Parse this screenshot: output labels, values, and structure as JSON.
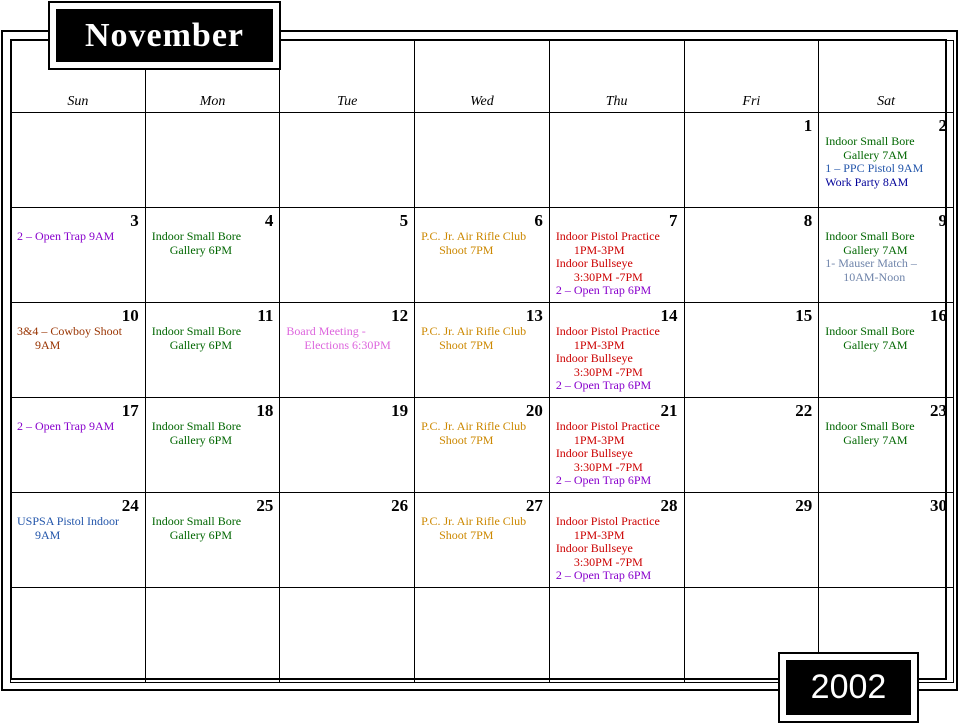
{
  "month": "November",
  "year": "2002",
  "weekdays": [
    "Sun",
    "Mon",
    "Tue",
    "Wed",
    "Thu",
    "Fri",
    "Sat"
  ],
  "colors": {
    "green": "#006600",
    "purple": "#8800cc",
    "orange": "#cc8800",
    "red": "#cc0000",
    "blue": "#000099",
    "steel": "#2255aa",
    "gray": "#6f84aa",
    "brown": "#993300",
    "pink": "#dd66dd"
  },
  "weeks": [
    [
      {
        "day": "",
        "events": []
      },
      {
        "day": "",
        "events": []
      },
      {
        "day": "",
        "events": []
      },
      {
        "day": "",
        "events": []
      },
      {
        "day": "",
        "events": []
      },
      {
        "day": "1",
        "events": []
      },
      {
        "day": "2",
        "events": [
          {
            "line1": "Indoor Small Bore",
            "line2": "Gallery 7AM",
            "color": "#006600"
          },
          {
            "line1": "1 – PPC Pistol  9AM",
            "line2": "",
            "color": "#2255aa"
          },
          {
            "line1": "Work Party  8AM",
            "line2": "",
            "color": "#000099"
          }
        ]
      }
    ],
    [
      {
        "day": "3",
        "events": [
          {
            "line1": "2 – Open Trap  9AM",
            "line2": "",
            "color": "#8800cc"
          }
        ]
      },
      {
        "day": "4",
        "events": [
          {
            "line1": "Indoor Small Bore",
            "line2": "Gallery 6PM",
            "color": "#006600"
          }
        ]
      },
      {
        "day": "5",
        "events": []
      },
      {
        "day": "6",
        "events": [
          {
            "line1": "P.C. Jr. Air Rifle Club",
            "line2": "Shoot   7PM",
            "color": "#cc8800"
          }
        ]
      },
      {
        "day": "7",
        "events": [
          {
            "line1": "Indoor Pistol Practice",
            "line2": "1PM-3PM",
            "color": "#cc0000"
          },
          {
            "line1": "Indoor  Bullseye",
            "line2": "3:30PM -7PM",
            "color": "#cc0000"
          },
          {
            "line1": "2 – Open Trap  6PM",
            "line2": "",
            "color": "#8800cc"
          }
        ]
      },
      {
        "day": "8",
        "events": []
      },
      {
        "day": "9",
        "events": [
          {
            "line1": "Indoor Small Bore",
            "line2": "Gallery 7AM",
            "color": "#006600"
          },
          {
            "line1": "1- Mauser Match –",
            "line2": "10AM-Noon",
            "color": "#6f84aa"
          }
        ]
      }
    ],
    [
      {
        "day": "10",
        "events": [
          {
            "line1": "3&4 – Cowboy Shoot",
            "line2": "9AM",
            "color": "#993300"
          }
        ]
      },
      {
        "day": "11",
        "events": [
          {
            "line1": "Indoor Small Bore",
            "line2": "Gallery 6PM",
            "color": "#006600"
          }
        ]
      },
      {
        "day": "12",
        "events": [
          {
            "line1": "Board Meeting -",
            "line2": "Elections  6:30PM",
            "color": "#dd66dd"
          }
        ]
      },
      {
        "day": "13",
        "events": [
          {
            "line1": "P.C. Jr. Air Rifle Club",
            "line2": "Shoot   7PM",
            "color": "#cc8800"
          }
        ]
      },
      {
        "day": "14",
        "events": [
          {
            "line1": "Indoor Pistol Practice",
            "line2": "1PM-3PM",
            "color": "#cc0000"
          },
          {
            "line1": "Indoor  Bullseye",
            "line2": "3:30PM -7PM",
            "color": "#cc0000"
          },
          {
            "line1": "2 – Open Trap  6PM",
            "line2": "",
            "color": "#8800cc"
          }
        ]
      },
      {
        "day": "15",
        "events": []
      },
      {
        "day": "16",
        "events": [
          {
            "line1": "Indoor Small Bore",
            "line2": "Gallery 7AM",
            "color": "#006600"
          }
        ]
      }
    ],
    [
      {
        "day": "17",
        "events": [
          {
            "line1": "2 – Open Trap  9AM",
            "line2": "",
            "color": "#8800cc"
          }
        ]
      },
      {
        "day": "18",
        "events": [
          {
            "line1": "Indoor Small Bore",
            "line2": "Gallery 6PM",
            "color": "#006600"
          }
        ]
      },
      {
        "day": "19",
        "events": []
      },
      {
        "day": "20",
        "events": [
          {
            "line1": "P.C. Jr. Air Rifle Club",
            "line2": "Shoot   7PM",
            "color": "#cc8800"
          }
        ]
      },
      {
        "day": "21",
        "events": [
          {
            "line1": "Indoor Pistol Practice",
            "line2": "1PM-3PM",
            "color": "#cc0000"
          },
          {
            "line1": "Indoor  Bullseye",
            "line2": "3:30PM -7PM",
            "color": "#cc0000"
          },
          {
            "line1": "2 – Open Trap  6PM",
            "line2": "",
            "color": "#8800cc"
          }
        ]
      },
      {
        "day": "22",
        "events": []
      },
      {
        "day": "23",
        "events": [
          {
            "line1": "Indoor Small Bore",
            "line2": "Gallery 7AM",
            "color": "#006600"
          }
        ]
      }
    ],
    [
      {
        "day": "24",
        "events": [
          {
            "line1": "USPSA Pistol  Indoor",
            "line2": "9AM",
            "color": "#2255aa"
          }
        ]
      },
      {
        "day": "25",
        "events": [
          {
            "line1": "Indoor Small Bore",
            "line2": "Gallery 6PM",
            "color": "#006600"
          }
        ]
      },
      {
        "day": "26",
        "events": []
      },
      {
        "day": "27",
        "events": [
          {
            "line1": "P.C. Jr. Air Rifle Club",
            "line2": "Shoot   7PM",
            "color": "#cc8800"
          }
        ]
      },
      {
        "day": "28",
        "events": [
          {
            "line1": "Indoor Pistol Practice",
            "line2": "1PM-3PM",
            "color": "#cc0000"
          },
          {
            "line1": "Indoor  Bullseye",
            "line2": "3:30PM -7PM",
            "color": "#cc0000"
          },
          {
            "line1": "2 – Open Trap  6PM",
            "line2": "",
            "color": "#8800cc"
          }
        ]
      },
      {
        "day": "29",
        "events": []
      },
      {
        "day": "30",
        "events": []
      }
    ],
    [
      {
        "day": "",
        "events": []
      },
      {
        "day": "",
        "events": []
      },
      {
        "day": "",
        "events": []
      },
      {
        "day": "",
        "events": []
      },
      {
        "day": "",
        "events": []
      },
      {
        "day": "",
        "events": []
      },
      {
        "day": "",
        "events": []
      }
    ]
  ]
}
